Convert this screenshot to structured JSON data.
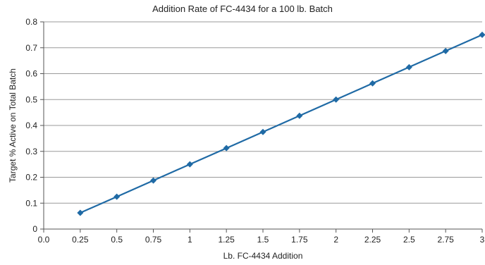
{
  "chart_data": {
    "type": "line",
    "title": "Addition Rate of FC-4434 for a 100 lb. Batch",
    "xlabel": "Lb. FC-4434 Addition",
    "ylabel": "Target % Active on Total Batch",
    "xlim": [
      0,
      3
    ],
    "ylim": [
      0,
      0.8
    ],
    "x_ticks": [
      0,
      0.25,
      0.5,
      0.75,
      1,
      1.25,
      1.5,
      1.75,
      2,
      2.25,
      2.5,
      2.75,
      3
    ],
    "x_tick_labels": [
      "0.0",
      "0.25",
      "0.5",
      "0.75",
      "1",
      "1.25",
      "1.5",
      "1.75",
      "2",
      "2.25",
      "2.5",
      "2.75",
      "3"
    ],
    "y_ticks": [
      0,
      0.1,
      0.2,
      0.3,
      0.4,
      0.5,
      0.6,
      0.7,
      0.8
    ],
    "y_tick_labels": [
      "0",
      "0.1",
      "0.2",
      "0.3",
      "0.4",
      "0.5",
      "0.6",
      "0.7",
      "0.8"
    ],
    "grid": "horizontal",
    "series": [
      {
        "x": [
          0.25,
          0.5,
          0.75,
          1,
          1.25,
          1.5,
          1.75,
          2,
          2.25,
          2.5,
          2.75,
          3
        ],
        "values": [
          0.0625,
          0.125,
          0.1875,
          0.25,
          0.3125,
          0.375,
          0.4375,
          0.5,
          0.5625,
          0.625,
          0.6875,
          0.75
        ],
        "color": "#1f6aa5",
        "marker": "diamond"
      }
    ]
  }
}
